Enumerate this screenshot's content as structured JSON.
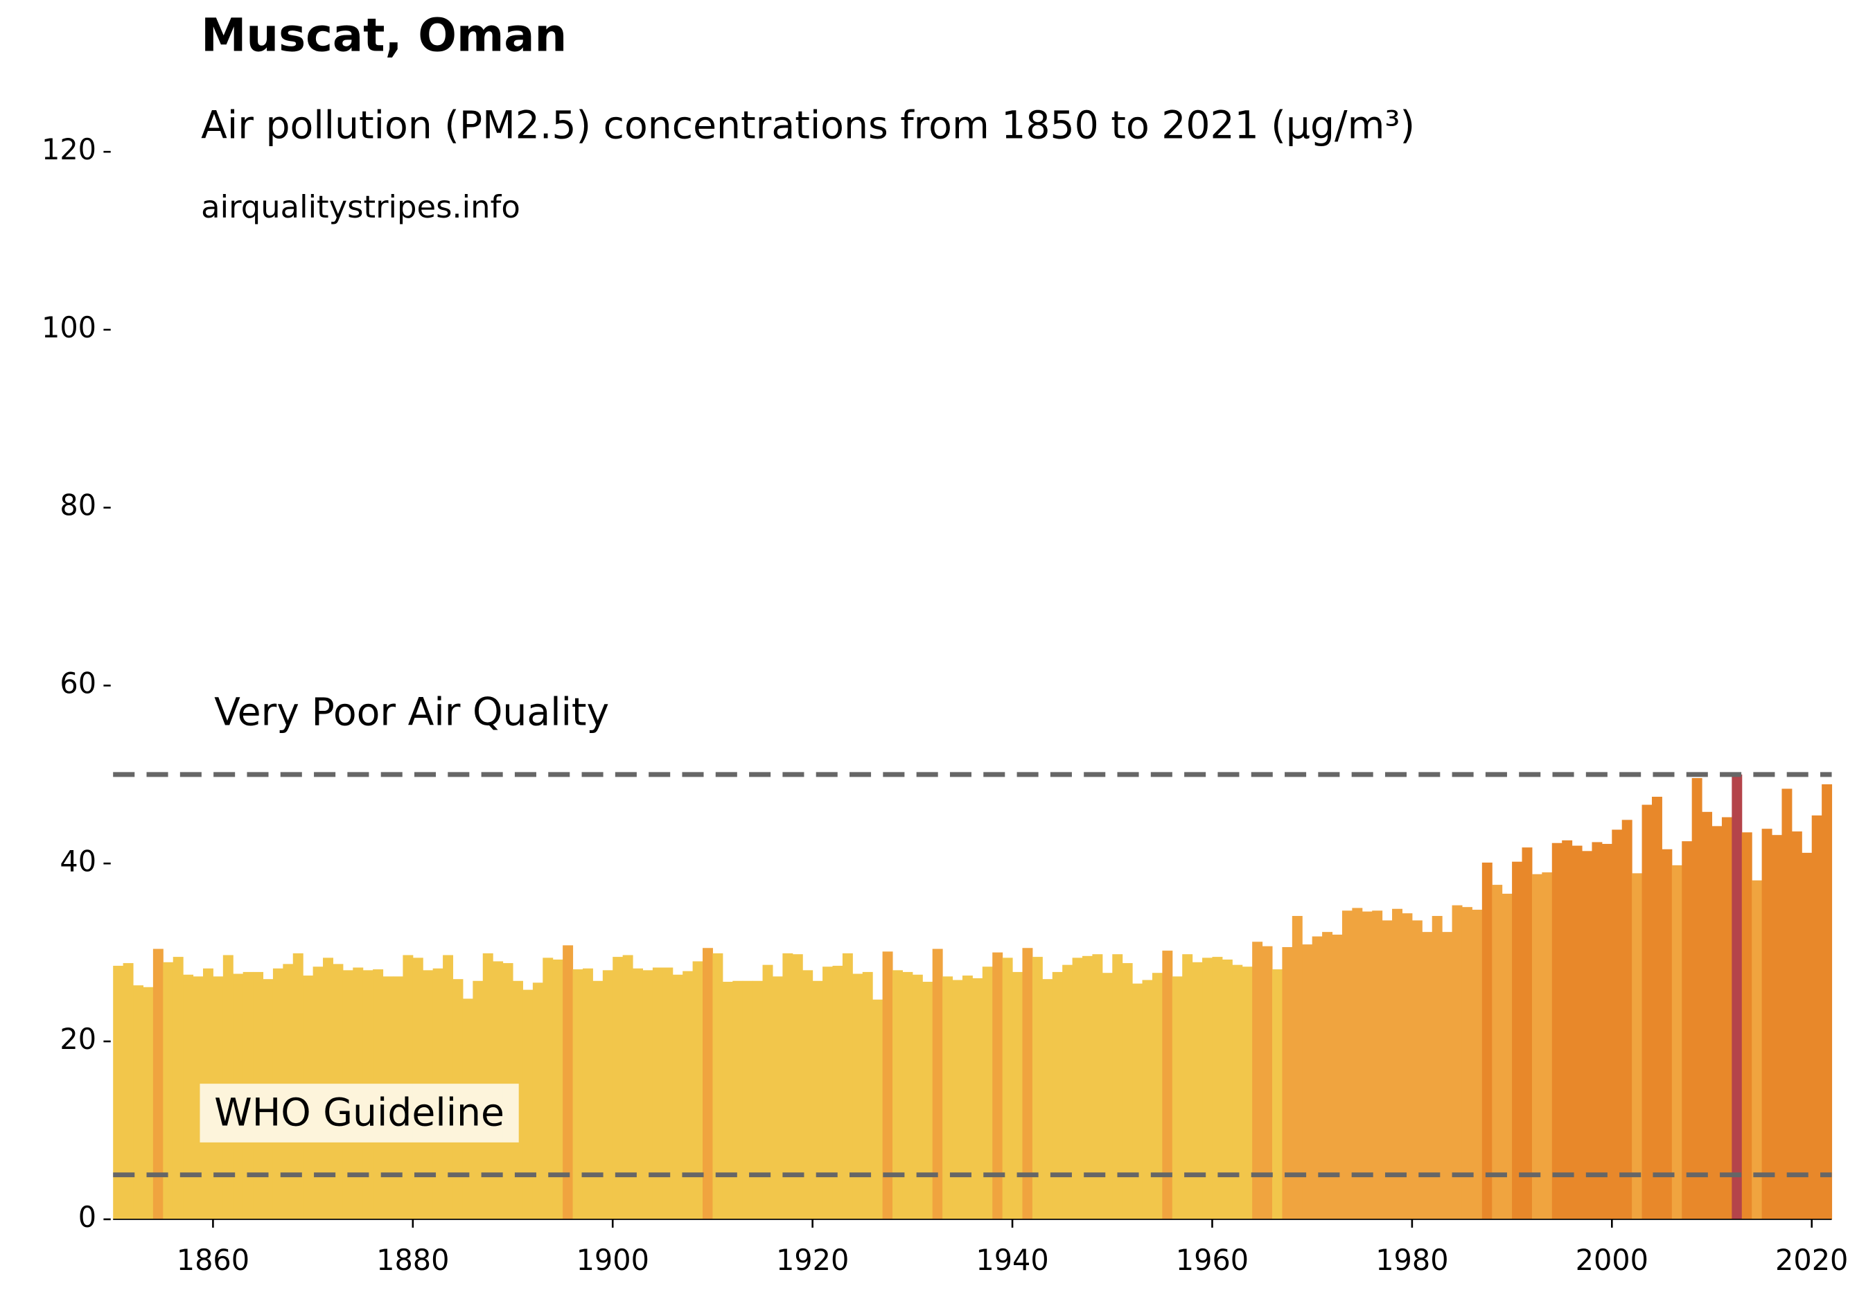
{
  "chart_data": {
    "type": "bar",
    "title": "Muscat, Oman",
    "subtitle": "Air pollution (PM2.5) concentrations from 1850 to 2021 (µg/m³)",
    "source": "airqualitystripes.info",
    "x": [
      1850,
      1851,
      1852,
      1853,
      1854,
      1855,
      1856,
      1857,
      1858,
      1859,
      1860,
      1861,
      1862,
      1863,
      1864,
      1865,
      1866,
      1867,
      1868,
      1869,
      1870,
      1871,
      1872,
      1873,
      1874,
      1875,
      1876,
      1877,
      1878,
      1879,
      1880,
      1881,
      1882,
      1883,
      1884,
      1885,
      1886,
      1887,
      1888,
      1889,
      1890,
      1891,
      1892,
      1893,
      1894,
      1895,
      1896,
      1897,
      1898,
      1899,
      1900,
      1901,
      1902,
      1903,
      1904,
      1905,
      1906,
      1907,
      1908,
      1909,
      1910,
      1911,
      1912,
      1913,
      1914,
      1915,
      1916,
      1917,
      1918,
      1919,
      1920,
      1921,
      1922,
      1923,
      1924,
      1925,
      1926,
      1927,
      1928,
      1929,
      1930,
      1931,
      1932,
      1933,
      1934,
      1935,
      1936,
      1937,
      1938,
      1939,
      1940,
      1941,
      1942,
      1943,
      1944,
      1945,
      1946,
      1947,
      1948,
      1949,
      1950,
      1951,
      1952,
      1953,
      1954,
      1955,
      1956,
      1957,
      1958,
      1959,
      1960,
      1961,
      1962,
      1963,
      1964,
      1965,
      1966,
      1967,
      1968,
      1969,
      1970,
      1971,
      1972,
      1973,
      1974,
      1975,
      1976,
      1977,
      1978,
      1979,
      1980,
      1981,
      1982,
      1983,
      1984,
      1985,
      1986,
      1987,
      1988,
      1989,
      1990,
      1991,
      1992,
      1993,
      1994,
      1995,
      1996,
      1997,
      1998,
      1999,
      2000,
      2001,
      2002,
      2003,
      2004,
      2005,
      2006,
      2007,
      2008,
      2009,
      2010,
      2011,
      2012,
      2013,
      2014,
      2015,
      2016,
      2017,
      2018,
      2019,
      2020,
      2021
    ],
    "values": [
      28.5,
      28.8,
      26.3,
      26.1,
      30.4,
      28.9,
      29.5,
      27.5,
      27.3,
      28.2,
      27.3,
      29.7,
      27.6,
      27.8,
      27.8,
      27.0,
      28.2,
      28.7,
      29.9,
      27.4,
      28.4,
      29.4,
      28.7,
      28.0,
      28.3,
      28.0,
      28.1,
      27.3,
      27.3,
      29.7,
      29.4,
      28.0,
      28.2,
      29.7,
      27.0,
      24.8,
      26.8,
      29.9,
      29.0,
      28.8,
      26.8,
      25.8,
      26.6,
      29.4,
      29.2,
      30.8,
      28.1,
      28.2,
      26.8,
      28.0,
      29.5,
      29.7,
      28.2,
      28.0,
      28.3,
      28.3,
      27.5,
      27.9,
      29.0,
      30.5,
      29.9,
      26.7,
      26.8,
      26.8,
      26.8,
      28.6,
      27.3,
      29.9,
      29.8,
      28.0,
      26.8,
      28.4,
      28.5,
      29.9,
      27.6,
      27.8,
      24.7,
      30.1,
      28.0,
      27.8,
      27.5,
      26.7,
      30.4,
      27.3,
      26.9,
      27.4,
      27.1,
      28.4,
      30.0,
      29.4,
      27.8,
      30.5,
      29.5,
      27.0,
      27.8,
      28.6,
      29.4,
      29.6,
      29.8,
      27.7,
      29.8,
      28.8,
      26.5,
      26.9,
      27.7,
      30.2,
      27.3,
      29.8,
      28.9,
      29.4,
      29.5,
      29.2,
      28.6,
      28.4,
      31.2,
      30.7,
      28.1,
      30.6,
      34.1,
      30.9,
      31.8,
      32.3,
      32.0,
      34.7,
      35.0,
      34.6,
      34.7,
      33.6,
      34.9,
      34.4,
      33.6,
      32.3,
      34.1,
      32.3,
      35.3,
      35.1,
      34.8,
      40.1,
      37.6,
      36.6,
      40.2,
      41.8,
      38.8,
      39.0,
      42.3,
      42.6,
      42.0,
      41.4,
      42.4,
      42.2,
      43.8,
      44.9,
      38.9,
      46.6,
      47.5,
      41.6,
      39.8,
      42.5,
      49.6,
      45.8,
      44.2,
      45.2,
      50.0,
      43.5,
      38.1,
      43.9,
      43.2,
      48.4,
      43.6,
      41.2,
      45.4,
      48.9
    ],
    "color_bins": {
      "thresholds": [
        30,
        40,
        50
      ],
      "colors": [
        "#f2c64b",
        "#f0a43f",
        "#e8882a",
        "#b4444a"
      ]
    },
    "reference_lines": [
      {
        "value": 50,
        "label": "Very Poor Air Quality"
      },
      {
        "value": 5,
        "label": "WHO Guideline"
      }
    ],
    "reference_line_color": "#666666",
    "xlim": [
      1850,
      2022
    ],
    "ylim": [
      0,
      120
    ],
    "xticks": [
      1860,
      1880,
      1900,
      1920,
      1940,
      1960,
      1980,
      2000,
      2020
    ],
    "yticks": [
      0,
      20,
      40,
      60,
      80,
      100,
      120
    ]
  }
}
